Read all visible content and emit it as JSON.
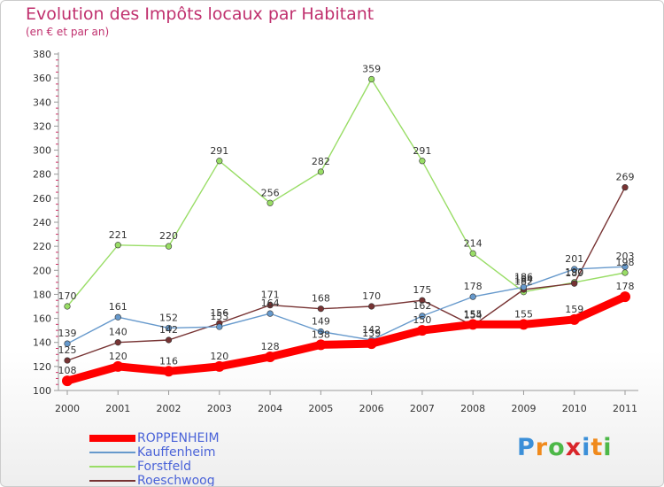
{
  "header": {
    "title": "Evolution des Impôts locaux par Habitant",
    "subtitle": "(en € et par an)"
  },
  "chart_data": {
    "type": "line",
    "title": "Evolution des Impôts locaux par Habitant",
    "subtitle": "(en € et par an)",
    "x": [
      "2000",
      "2001",
      "2002",
      "2003",
      "2004",
      "2005",
      "2006",
      "2007",
      "2008",
      "2009",
      "2010",
      "2011"
    ],
    "ylim": [
      100,
      380
    ],
    "yticks": [
      100,
      120,
      140,
      160,
      180,
      200,
      220,
      240,
      260,
      280,
      300,
      320,
      340,
      360,
      380
    ],
    "grid": false,
    "legend_position": "bottom-left",
    "series": [
      {
        "name": "ROPPENHEIM",
        "color": "#ff0000",
        "values": [
          108,
          120,
          116,
          120,
          128,
          138,
          139,
          150,
          155,
          155,
          159,
          178
        ],
        "labels": [
          "108",
          "120",
          "116",
          "120",
          "128",
          "138",
          "139",
          "150",
          "155",
          "155",
          "159",
          "178"
        ]
      },
      {
        "name": "Kauffenheim",
        "color": "#6699cc",
        "values": [
          139,
          161,
          152,
          153,
          164,
          149,
          142,
          162,
          178,
          186,
          201,
          203
        ],
        "labels": [
          "139",
          "161",
          "152",
          "153",
          "164",
          "149",
          "142",
          "162",
          "178",
          "186",
          "201",
          "203"
        ]
      },
      {
        "name": "Forstfeld",
        "color": "#99dd66",
        "values": [
          170,
          221,
          220,
          291,
          256,
          282,
          359,
          291,
          214,
          182,
          190,
          198
        ],
        "labels": [
          "170",
          "221",
          "220",
          "291",
          "256",
          "282",
          "359",
          "291",
          "214",
          "182",
          "190",
          "198"
        ]
      },
      {
        "name": "Roeschwoog",
        "color": "#773333",
        "values": [
          125,
          140,
          142,
          156,
          171,
          168,
          170,
          175,
          154,
          184,
          189,
          269
        ],
        "labels": [
          "125",
          "140",
          "142",
          "156",
          "171",
          "168",
          "170",
          "175",
          "154",
          "184",
          "189",
          "269"
        ]
      }
    ]
  },
  "legend": {
    "items": [
      {
        "label": "ROPPENHEIM",
        "color": "#ff0000"
      },
      {
        "label": "Kauffenheim",
        "color": "#6699cc"
      },
      {
        "label": "Forstfeld",
        "color": "#99dd66"
      },
      {
        "label": "Roeschwoog",
        "color": "#773333"
      }
    ]
  },
  "logo": {
    "letters": [
      {
        "ch": "P",
        "color": "#3b8fd8"
      },
      {
        "ch": "r",
        "color": "#f08a1c"
      },
      {
        "ch": "o",
        "color": "#4db848"
      },
      {
        "ch": "x",
        "color": "#d9252a"
      },
      {
        "ch": "i",
        "color": "#3b8fd8"
      },
      {
        "ch": "t",
        "color": "#f08a1c"
      },
      {
        "ch": "i",
        "color": "#4db848"
      }
    ]
  }
}
